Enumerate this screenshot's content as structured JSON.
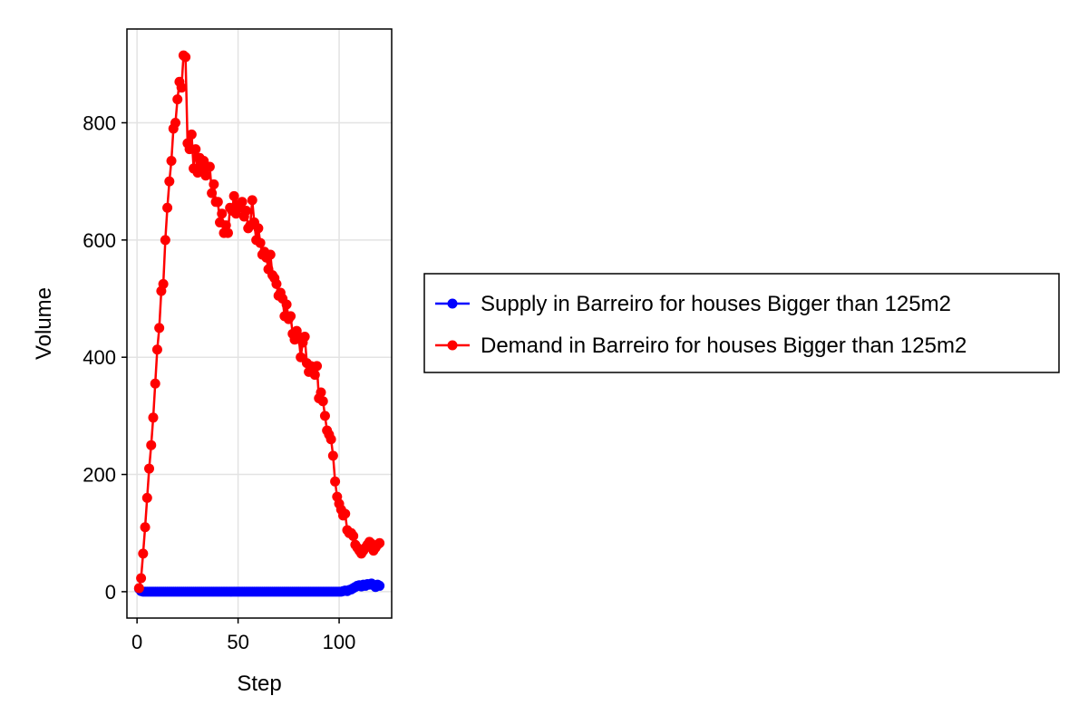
{
  "chart_data": {
    "type": "line",
    "title": "",
    "xlabel": "Step",
    "ylabel": "Volume",
    "xlim": [
      -5,
      126
    ],
    "ylim": [
      -45,
      960
    ],
    "xticks": [
      0,
      50,
      100
    ],
    "yticks": [
      0,
      200,
      400,
      600,
      800
    ],
    "grid": true,
    "legend_position": "right",
    "series": [
      {
        "name": "Supply in Barreiro for houses Bigger than 125m2",
        "color": "#0000ff",
        "marker": "circle",
        "x": [
          1,
          2,
          3,
          4,
          5,
          6,
          7,
          8,
          9,
          10,
          11,
          12,
          13,
          14,
          15,
          16,
          17,
          18,
          19,
          20,
          21,
          22,
          23,
          24,
          25,
          26,
          27,
          28,
          29,
          30,
          31,
          32,
          33,
          34,
          35,
          36,
          37,
          38,
          39,
          40,
          41,
          42,
          43,
          44,
          45,
          46,
          47,
          48,
          49,
          50,
          51,
          52,
          53,
          54,
          55,
          56,
          57,
          58,
          59,
          60,
          61,
          62,
          63,
          64,
          65,
          66,
          67,
          68,
          69,
          70,
          71,
          72,
          73,
          74,
          75,
          76,
          77,
          78,
          79,
          80,
          81,
          82,
          83,
          84,
          85,
          86,
          87,
          88,
          89,
          90,
          91,
          92,
          93,
          94,
          95,
          96,
          97,
          98,
          99,
          100,
          101,
          102,
          103,
          104,
          105,
          106,
          107,
          108,
          109,
          110,
          111,
          112,
          113,
          114,
          115,
          116,
          117,
          118,
          119,
          120
        ],
        "y": [
          5,
          1,
          0,
          0,
          0,
          0,
          0,
          0,
          0,
          0,
          0,
          0,
          0,
          0,
          0,
          0,
          0,
          0,
          0,
          0,
          0,
          0,
          0,
          0,
          0,
          0,
          0,
          0,
          0,
          0,
          0,
          0,
          0,
          0,
          0,
          0,
          0,
          0,
          0,
          0,
          0,
          0,
          0,
          0,
          0,
          0,
          0,
          0,
          0,
          0,
          0,
          0,
          0,
          0,
          0,
          0,
          0,
          0,
          0,
          0,
          0,
          0,
          0,
          0,
          0,
          0,
          0,
          0,
          0,
          0,
          0,
          0,
          0,
          0,
          0,
          0,
          0,
          0,
          0,
          0,
          0,
          0,
          0,
          0,
          0,
          0,
          0,
          0,
          0,
          0,
          0,
          0,
          0,
          0,
          0,
          0,
          0,
          0,
          0,
          0,
          0,
          1,
          2,
          1,
          3,
          4,
          6,
          8,
          10,
          11,
          9,
          12,
          10,
          13,
          12,
          14,
          11,
          8,
          12,
          10
        ]
      },
      {
        "name": "Demand in Barreiro for houses Bigger than 125m2",
        "color": "#ff0000",
        "marker": "circle",
        "x": [
          1,
          2,
          3,
          4,
          5,
          6,
          7,
          8,
          9,
          10,
          11,
          12,
          13,
          14,
          15,
          16,
          17,
          18,
          19,
          20,
          21,
          22,
          23,
          24,
          25,
          26,
          27,
          28,
          29,
          30,
          31,
          32,
          33,
          34,
          35,
          36,
          37,
          38,
          39,
          40,
          41,
          42,
          43,
          44,
          45,
          46,
          47,
          48,
          49,
          50,
          51,
          52,
          53,
          54,
          55,
          56,
          57,
          58,
          59,
          60,
          61,
          62,
          63,
          64,
          65,
          66,
          67,
          68,
          69,
          70,
          71,
          72,
          73,
          74,
          75,
          76,
          77,
          78,
          79,
          80,
          81,
          82,
          83,
          84,
          85,
          86,
          87,
          88,
          89,
          90,
          91,
          92,
          93,
          94,
          95,
          96,
          97,
          98,
          99,
          100,
          101,
          102,
          103,
          104,
          105,
          106,
          107,
          108,
          109,
          110,
          111,
          112,
          113,
          114,
          115,
          116,
          117,
          118,
          119,
          120
        ],
        "y": [
          6,
          23,
          65,
          110,
          160,
          210,
          250,
          297,
          355,
          413,
          450,
          513,
          525,
          600,
          655,
          700,
          735,
          790,
          800,
          840,
          870,
          860,
          915,
          912,
          765,
          755,
          780,
          722,
          755,
          715,
          740,
          720,
          735,
          710,
          725,
          725,
          680,
          695,
          665,
          665,
          630,
          645,
          612,
          625,
          612,
          655,
          650,
          675,
          645,
          660,
          655,
          665,
          640,
          650,
          620,
          625,
          668,
          630,
          600,
          620,
          595,
          575,
          580,
          570,
          550,
          575,
          540,
          535,
          525,
          505,
          510,
          500,
          470,
          490,
          465,
          470,
          440,
          430,
          445,
          435,
          400,
          425,
          435,
          390,
          375,
          385,
          380,
          370,
          385,
          330,
          340,
          325,
          300,
          275,
          268,
          260,
          232,
          188,
          162,
          150,
          140,
          130,
          133,
          105,
          100,
          100,
          95,
          80,
          75,
          70,
          65,
          70,
          75,
          80,
          85,
          82,
          70,
          75,
          80,
          83
        ]
      }
    ]
  }
}
